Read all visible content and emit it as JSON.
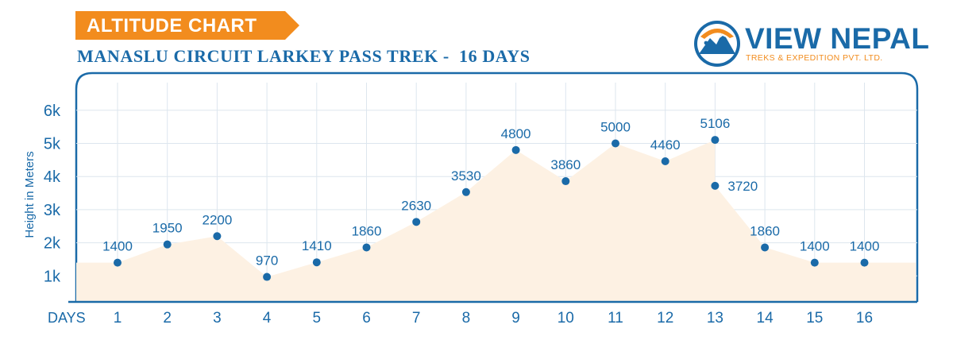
{
  "header": {
    "tag_label": "ALTITUDE CHART",
    "subtitle": "MANASLU CIRCUIT LARKEY PASS TREK -  16 DAYS"
  },
  "logo": {
    "name": "VIEW NEPAL",
    "tagline": "TREKS & EXPEDITION PVT. LTD."
  },
  "colors": {
    "accent_orange": "#f28c1e",
    "brand_blue": "#1a6aa8",
    "area_fill": "#fdf1e3",
    "grid": "#dde6ee"
  },
  "chart_data": {
    "type": "area",
    "xlabel": "DAYS",
    "ylabel": "Height in Meters",
    "x": [
      1,
      2,
      3,
      4,
      5,
      6,
      7,
      8,
      9,
      10,
      11,
      12,
      13,
      13,
      14,
      15,
      16
    ],
    "values": [
      1400,
      1950,
      2200,
      970,
      1410,
      1860,
      2630,
      3530,
      4800,
      3860,
      5000,
      4460,
      5106,
      3720,
      1860,
      1400,
      1400
    ],
    "point_labels": [
      "1400",
      "1950",
      "2200",
      "970",
      "1410",
      "1860",
      "2630",
      "3530",
      "4800",
      "3860",
      "5000",
      "4460",
      "5106",
      "3720",
      "1860",
      "1400",
      "1400"
    ],
    "x_ticks": [
      "1",
      "2",
      "3",
      "4",
      "5",
      "6",
      "7",
      "8",
      "9",
      "10",
      "11",
      "12",
      "13",
      "14",
      "15",
      "16"
    ],
    "y_ticks": [
      1000,
      2000,
      3000,
      4000,
      5000,
      6000
    ],
    "y_tick_labels": [
      "1k",
      "2k",
      "3k",
      "4k",
      "5k",
      "6k"
    ],
    "ylim": [
      0,
      6800
    ],
    "grid": true
  }
}
